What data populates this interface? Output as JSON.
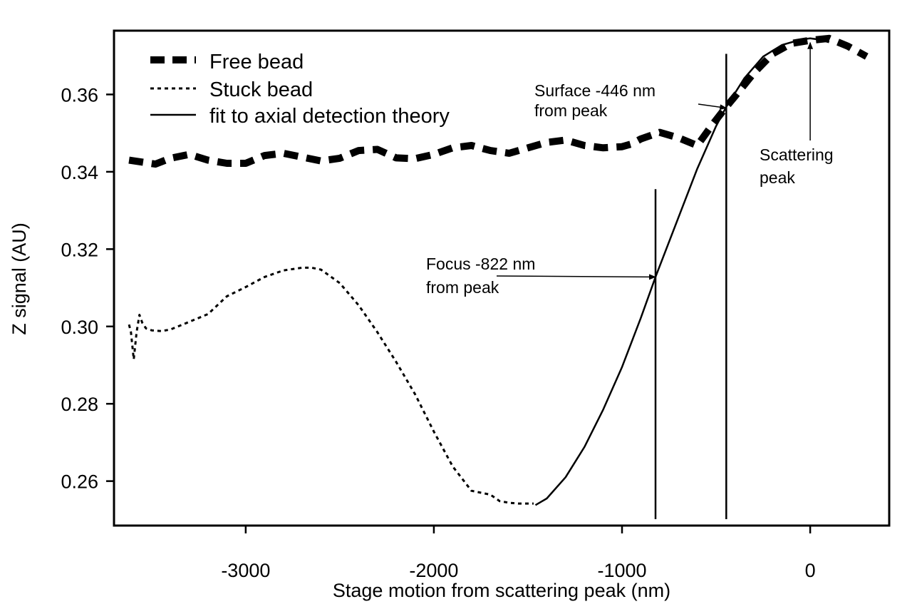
{
  "chart_data": {
    "type": "line",
    "title": "",
    "xlabel": "Stage motion from scattering peak (nm)",
    "ylabel": "Z signal (AU)",
    "xlim": [
      -3700,
      420
    ],
    "ylim": [
      0.2485,
      0.3765
    ],
    "x_ticks": [
      {
        "value": -3000,
        "label": "-3000"
      },
      {
        "value": -2000,
        "label": "-2000"
      },
      {
        "value": -1000,
        "label": "-1000"
      },
      {
        "value": 0,
        "label": "0"
      }
    ],
    "y_ticks": [
      {
        "value": 0.26,
        "label": "0.26"
      },
      {
        "value": 0.28,
        "label": "0.28"
      },
      {
        "value": 0.3,
        "label": "0.30"
      },
      {
        "value": 0.32,
        "label": "0.32"
      },
      {
        "value": 0.34,
        "label": "0.34"
      },
      {
        "value": 0.36,
        "label": "0.36"
      }
    ],
    "grid": false,
    "legend_placement": "top-left",
    "series": [
      {
        "name": "Free bead",
        "style": "thick-dashed",
        "x": [
          -3620,
          -3550,
          -3480,
          -3400,
          -3300,
          -3200,
          -3100,
          -3000,
          -2900,
          -2800,
          -2700,
          -2600,
          -2500,
          -2400,
          -2300,
          -2200,
          -2100,
          -2000,
          -1900,
          -1800,
          -1700,
          -1600,
          -1500,
          -1400,
          -1300,
          -1200,
          -1100,
          -1000,
          -950,
          -900,
          -800,
          -700,
          -600,
          -520,
          -446,
          -400,
          -300,
          -200,
          -100,
          0,
          100,
          200,
          300
        ],
        "y": [
          0.343,
          0.3425,
          0.342,
          0.3435,
          0.3445,
          0.343,
          0.3422,
          0.3422,
          0.3442,
          0.3448,
          0.3438,
          0.3428,
          0.3435,
          0.3455,
          0.3458,
          0.3436,
          0.3434,
          0.3445,
          0.3462,
          0.3468,
          0.3455,
          0.3448,
          0.3462,
          0.3476,
          0.3482,
          0.3468,
          0.3462,
          0.3465,
          0.3472,
          0.3485,
          0.3502,
          0.3488,
          0.3468,
          0.3522,
          0.3568,
          0.3595,
          0.3655,
          0.3705,
          0.3732,
          0.374,
          0.3745,
          0.3725,
          0.3698
        ]
      },
      {
        "name": "Stuck bead",
        "style": "dotted",
        "x": [
          -3620,
          -3610,
          -3595,
          -3580,
          -3565,
          -3550,
          -3530,
          -3500,
          -3450,
          -3400,
          -3300,
          -3200,
          -3100,
          -3000,
          -2900,
          -2800,
          -2700,
          -2650,
          -2600,
          -2500,
          -2400,
          -2300,
          -2200,
          -2100,
          -2000,
          -1900,
          -1800,
          -1700,
          -1650,
          -1600,
          -1550,
          -1500,
          -1470
        ],
        "y": [
          0.3005,
          0.2985,
          0.2915,
          0.2985,
          0.303,
          0.301,
          0.2995,
          0.299,
          0.2988,
          0.2992,
          0.3012,
          0.3032,
          0.3078,
          0.3102,
          0.3128,
          0.3145,
          0.3152,
          0.3152,
          0.3147,
          0.3112,
          0.3055,
          0.2985,
          0.2908,
          0.2825,
          0.2728,
          0.2638,
          0.2575,
          0.2565,
          0.2548,
          0.2544,
          0.2542,
          0.2542,
          0.2542
        ]
      },
      {
        "name": "fit to axial detection theory",
        "style": "solid",
        "x": [
          -1460,
          -1400,
          -1300,
          -1200,
          -1100,
          -1000,
          -900,
          -822,
          -700,
          -600,
          -500,
          -446,
          -350,
          -250,
          -150,
          -50,
          0,
          50,
          100
        ],
        "y": [
          0.2538,
          0.2555,
          0.261,
          0.2688,
          0.2785,
          0.2895,
          0.3022,
          0.3128,
          0.3282,
          0.3408,
          0.3518,
          0.3568,
          0.3642,
          0.3698,
          0.3728,
          0.3742,
          0.3745,
          0.3742,
          0.3735
        ]
      }
    ],
    "vertical_lines": [
      {
        "x": -822,
        "y_top": 0.3355
      },
      {
        "x": -446,
        "y_top": 0.3705
      }
    ],
    "annotations": [
      {
        "lines": [
          "Surface -446 nm",
          "from peak"
        ],
        "target_x": -446,
        "target_y": 0.3565
      },
      {
        "lines": [
          "Focus -822 nm",
          "from peak"
        ],
        "target_x": -822,
        "target_y": 0.3128
      },
      {
        "lines": [
          "Scattering",
          "peak"
        ],
        "target_x": 0,
        "target_y": 0.3745
      }
    ]
  }
}
